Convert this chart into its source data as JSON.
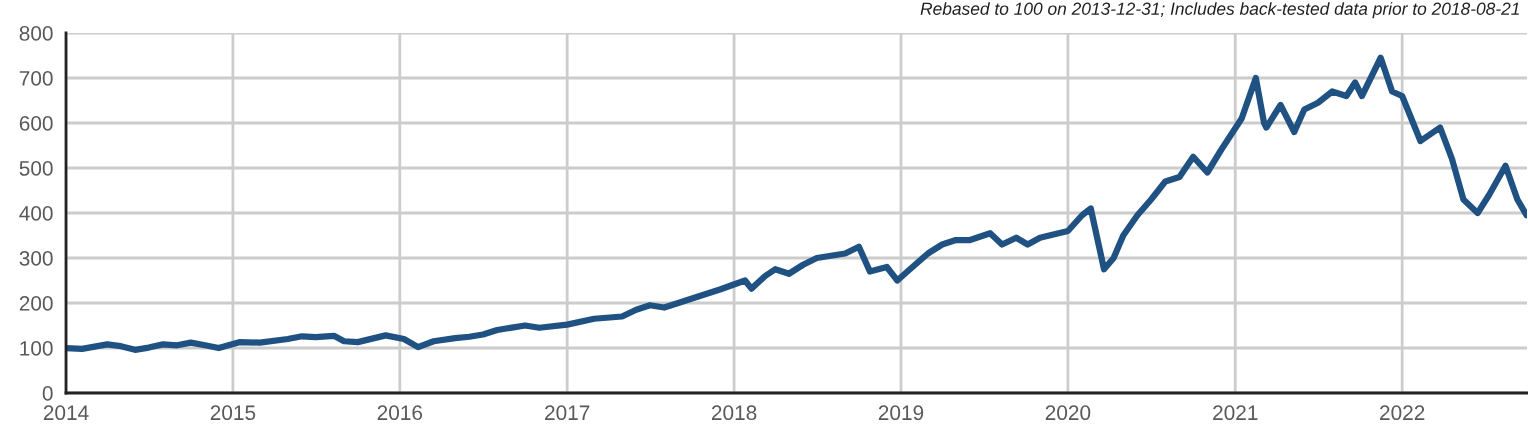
{
  "chart_data": {
    "type": "line",
    "annotations": [
      "Rebased to 100 on 2013-12-31; Includes back-tested data prior to 2018-08-21"
    ],
    "x": [
      "2014-01-01",
      "2014-02-05",
      "2014-04-01",
      "2014-05-01",
      "2014-06-01",
      "2014-07-01",
      "2014-08-01",
      "2014-09-01",
      "2014-10-01",
      "2014-11-01",
      "2014-12-01",
      "2015-01-15",
      "2015-03-01",
      "2015-05-01",
      "2015-06-01",
      "2015-07-01",
      "2015-08-10",
      "2015-09-01",
      "2015-10-01",
      "2015-12-01",
      "2016-01-10",
      "2016-02-10",
      "2016-03-15",
      "2016-05-01",
      "2016-06-01",
      "2016-07-01",
      "2016-08-01",
      "2016-10-01",
      "2016-11-01",
      "2017-01-01",
      "2017-03-01",
      "2017-05-01",
      "2017-06-01",
      "2017-07-01",
      "2017-08-01",
      "2017-09-01",
      "2017-10-01",
      "2017-12-01",
      "2018-01-25",
      "2018-02-08",
      "2018-03-10",
      "2018-04-01",
      "2018-05-01",
      "2018-06-01",
      "2018-07-01",
      "2018-08-01",
      "2018-09-01",
      "2018-10-01",
      "2018-10-25",
      "2018-12-01",
      "2018-12-24",
      "2019-01-15",
      "2019-03-01",
      "2019-04-01",
      "2019-05-01",
      "2019-06-01",
      "2019-07-15",
      "2019-08-10",
      "2019-09-10",
      "2019-10-05",
      "2019-11-01",
      "2020-01-01",
      "2020-02-01",
      "2020-02-20",
      "2020-03-20",
      "2020-04-10",
      "2020-05-01",
      "2020-06-01",
      "2020-07-01",
      "2020-08-01",
      "2020-09-01",
      "2020-10-01",
      "2020-11-01",
      "2020-12-01",
      "2021-01-15",
      "2021-02-15",
      "2021-03-05",
      "2021-03-10",
      "2021-04-10",
      "2021-05-10",
      "2021-06-01",
      "2021-07-01",
      "2021-08-01",
      "2021-09-01",
      "2021-09-20",
      "2021-10-05",
      "2021-11-15",
      "2021-12-10",
      "2022-01-01",
      "2022-02-10",
      "2022-03-25",
      "2022-04-20",
      "2022-05-15",
      "2022-06-15",
      "2022-07-10",
      "2022-08-15",
      "2022-09-10",
      "2022-09-30"
    ],
    "series": [
      {
        "color": "#1f5282",
        "values": [
          100,
          98,
          108,
          104,
          96,
          101,
          108,
          106,
          112,
          106,
          100,
          113,
          112,
          120,
          126,
          124,
          127,
          115,
          113,
          128,
          120,
          102,
          115,
          122,
          125,
          130,
          140,
          150,
          145,
          152,
          165,
          170,
          185,
          195,
          190,
          200,
          210,
          230,
          250,
          232,
          260,
          275,
          265,
          285,
          300,
          305,
          310,
          325,
          270,
          280,
          250,
          270,
          310,
          330,
          340,
          340,
          355,
          330,
          345,
          330,
          345,
          360,
          395,
          410,
          275,
          300,
          350,
          395,
          430,
          470,
          480,
          525,
          490,
          540,
          610,
          700,
          600,
          590,
          640,
          580,
          630,
          645,
          670,
          660,
          690,
          660,
          745,
          670,
          660,
          560,
          590,
          520,
          430,
          400,
          440,
          505,
          430,
          395
        ]
      }
    ],
    "xlim": [
      "2014-01-01",
      "2022-10-01"
    ],
    "xticks": [
      {
        "value": "2014-01-01",
        "label": "2014"
      },
      {
        "value": "2015-01-01",
        "label": "2015"
      },
      {
        "value": "2016-01-01",
        "label": "2016"
      },
      {
        "value": "2017-01-01",
        "label": "2017"
      },
      {
        "value": "2018-01-01",
        "label": "2018"
      },
      {
        "value": "2019-01-01",
        "label": "2019"
      },
      {
        "value": "2020-01-01",
        "label": "2020"
      },
      {
        "value": "2021-01-01",
        "label": "2021"
      },
      {
        "value": "2022-01-01",
        "label": "2022"
      }
    ],
    "ylim": [
      0,
      800
    ],
    "yticks": [
      0,
      100,
      200,
      300,
      400,
      500,
      600,
      700,
      800
    ],
    "grid": true,
    "line_style": "solid",
    "marker": "none"
  }
}
